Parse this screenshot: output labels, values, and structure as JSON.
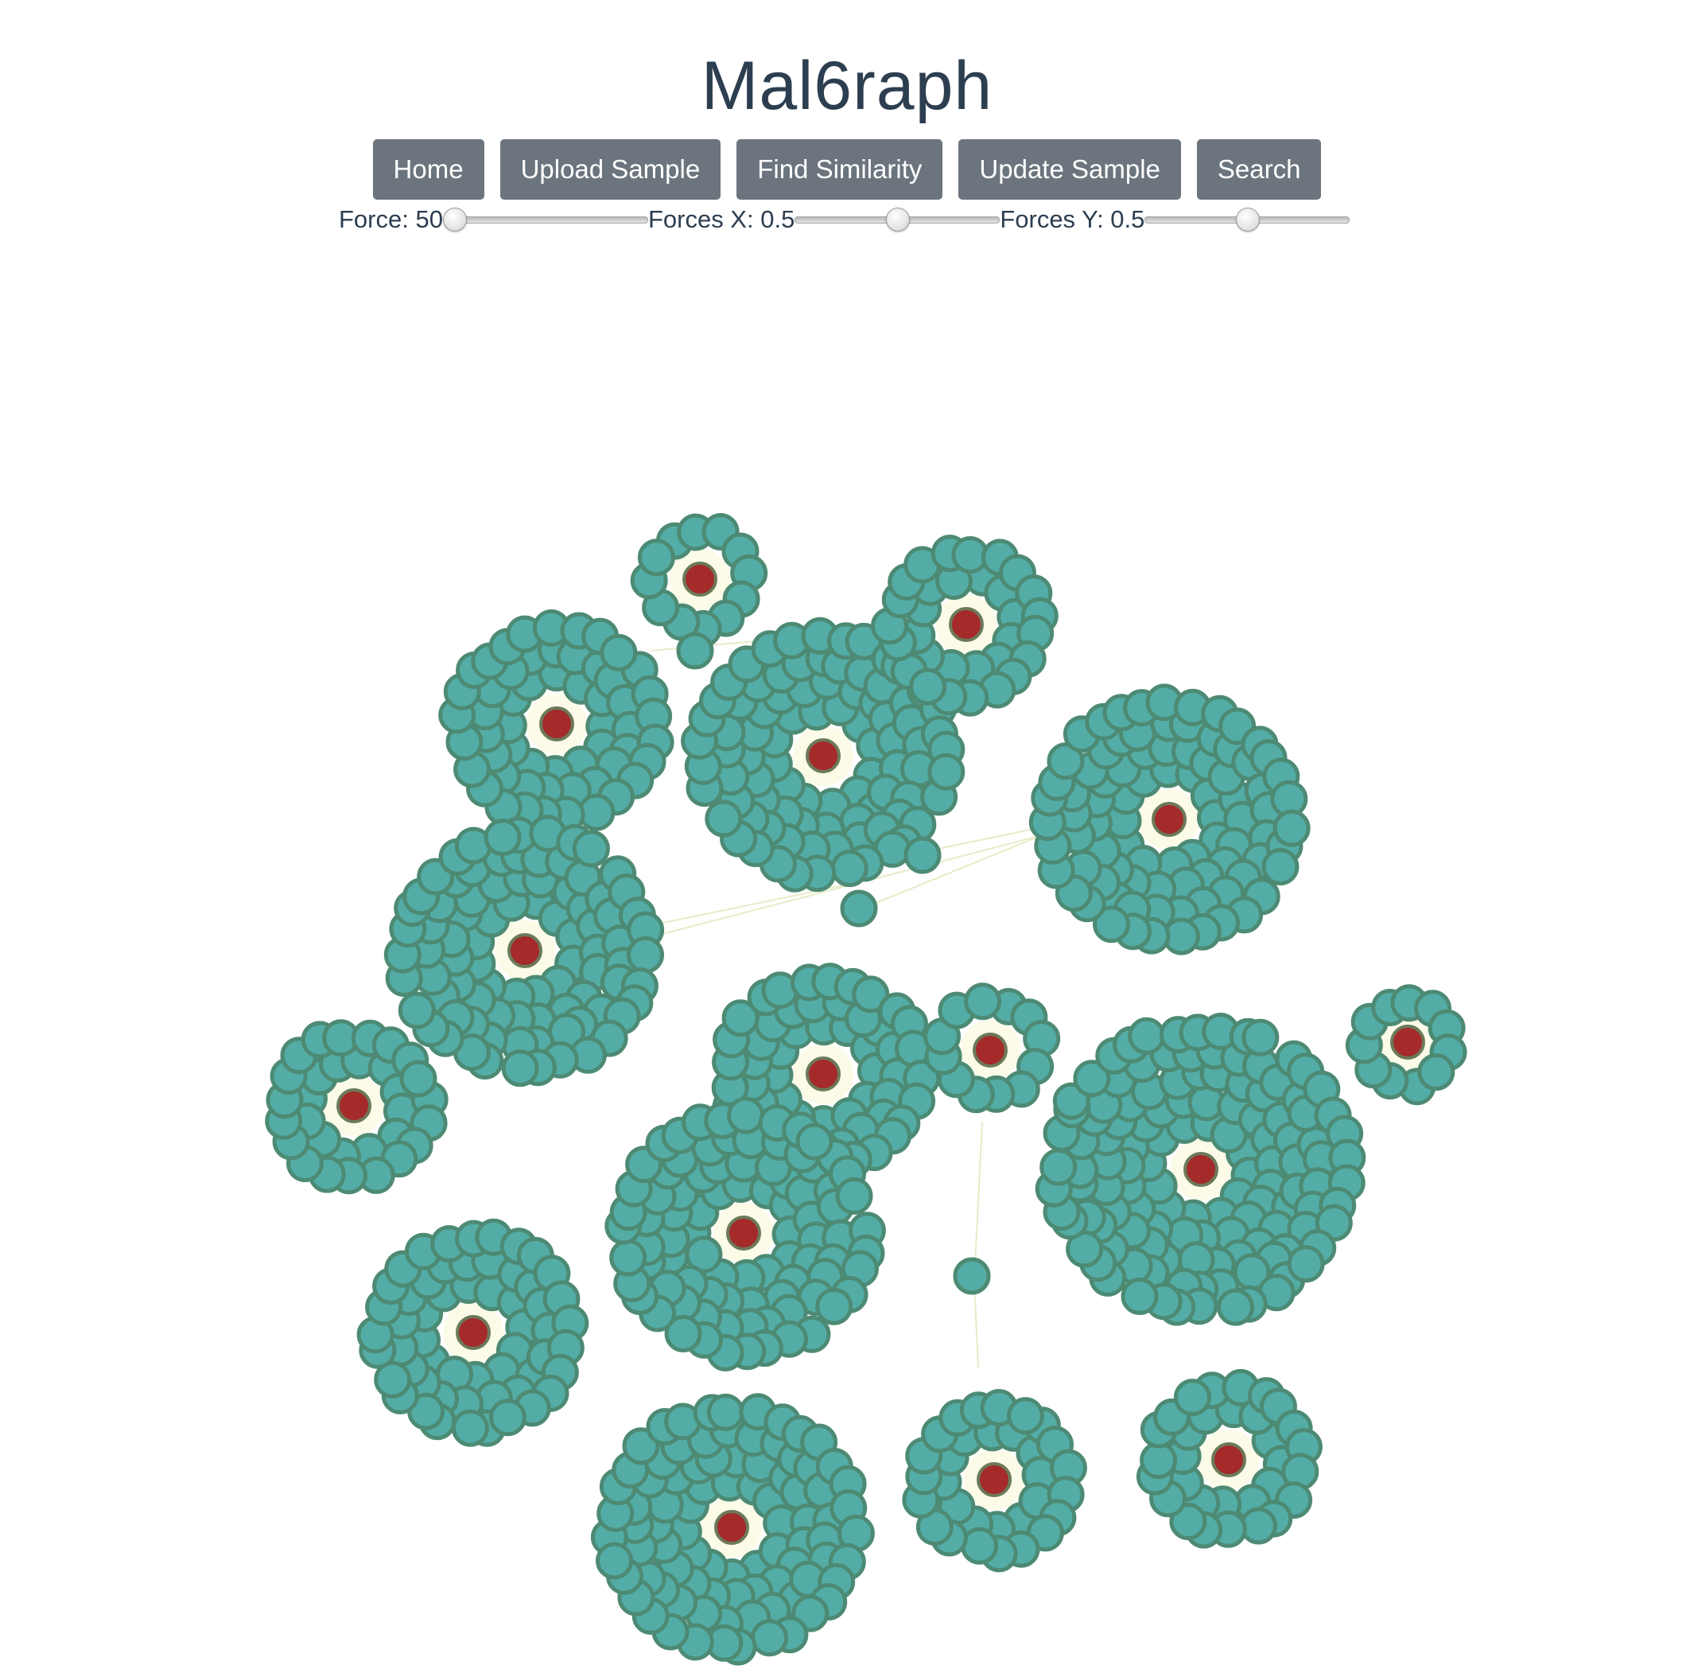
{
  "app": {
    "title": "Mal6raph"
  },
  "nav": {
    "home_label": "Home",
    "upload_label": "Upload Sample",
    "similarity_label": "Find Similarity",
    "update_label": "Update Sample",
    "search_label": "Search"
  },
  "controls": {
    "force": {
      "label": "Force: 50",
      "value": 50,
      "min": 50,
      "max": 500
    },
    "forces_x": {
      "label": "Forces X: 0.5",
      "value": 0.5,
      "min": 0,
      "max": 1
    },
    "forces_y": {
      "label": "Forces Y: 0.5",
      "value": 0.5,
      "min": 0,
      "max": 1
    }
  },
  "graph": {
    "hub_color": "#a52a2a",
    "leaf_color": "#53ada6",
    "leaf_stroke_color": "#4d8a74",
    "halo_color": "#fbfbe8",
    "link_color": "#e7ecc9"
  }
}
